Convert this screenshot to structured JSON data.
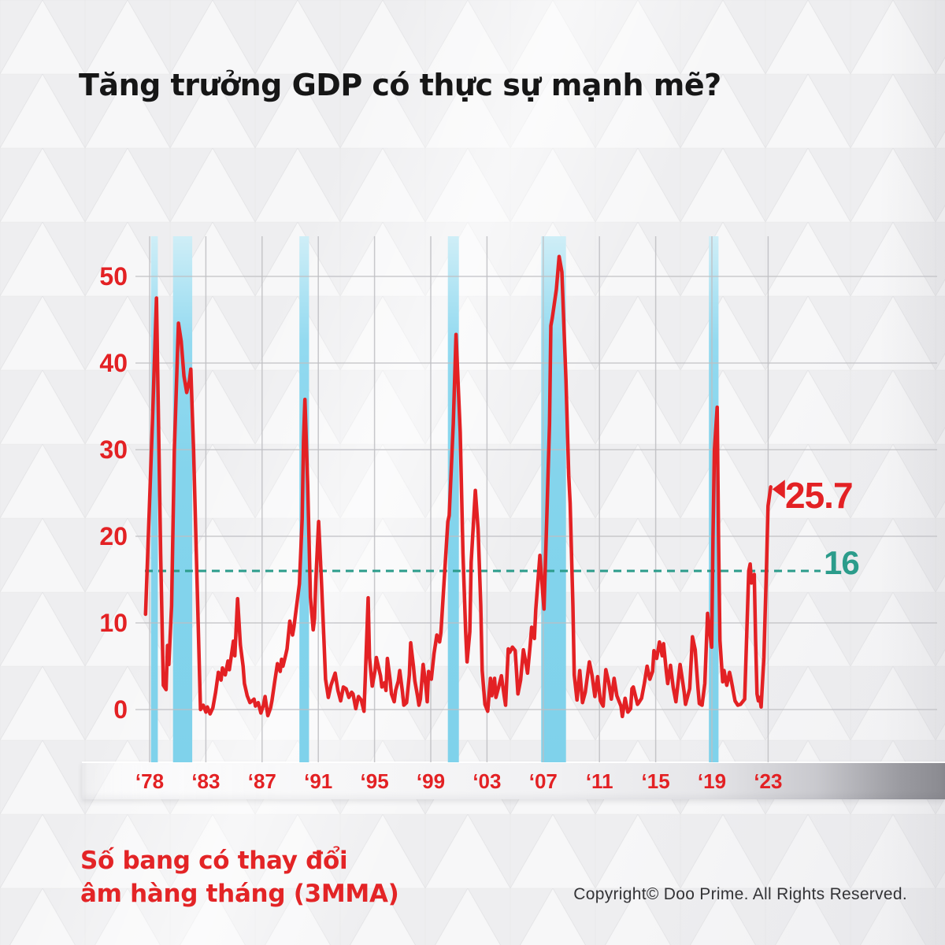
{
  "page": {
    "title": "Tăng trưởng GDP có thực sự mạnh mẽ?",
    "footnote_line1": "Số bang có thay đổi",
    "footnote_line2": "âm hàng tháng (3MMA)",
    "copyright": "Copyright© Doo Prime. All Rights Reserved."
  },
  "colors": {
    "line_red": "#e32124",
    "label_red": "#e32124",
    "teal": "#2b9c8b",
    "band_blue": "#84d4ec",
    "band_blue_light": "#cfeef7",
    "grid": "#bfbfc3",
    "title_text": "#161616",
    "copyright_text": "#333336",
    "background": "#f1f1f2",
    "ribbon_dark": "#8a8a90"
  },
  "chart_data": {
    "type": "line",
    "title": "Tăng trưởng GDP có thực sự mạnh mẽ?",
    "series_note": "Số bang có thay đổi âm hàng tháng (3MMA)",
    "x_tick_labels": [
      "‘78",
      "‘83",
      "‘87",
      "‘91",
      "‘95",
      "‘99",
      "‘03",
      "‘07",
      "‘11",
      "‘15",
      "‘19",
      "‘23"
    ],
    "y_ticks": [
      0,
      10,
      20,
      30,
      40,
      50
    ],
    "ylim": [
      -6,
      54.5
    ],
    "x_range_years": [
      1977.7,
      2023.2
    ],
    "grid": true,
    "reference_line": {
      "value": 16,
      "label": "16"
    },
    "end_annotation": {
      "value": 25.7,
      "label": "25.7"
    },
    "recession_bands": [
      [
        1978.1,
        1978.6
      ],
      [
        1979.7,
        1981.1
      ],
      [
        1988.9,
        1989.6
      ],
      [
        1999.7,
        2000.5
      ],
      [
        2006.5,
        2008.3
      ],
      [
        2018.7,
        2019.4
      ]
    ],
    "series": [
      {
        "name": "Số bang có thay đổi âm hàng tháng (3MMA)",
        "points": [
          [
            1977.7,
            11
          ],
          [
            1978.2,
            33
          ],
          [
            1978.5,
            47.5
          ],
          [
            1978.8,
            18
          ],
          [
            1979.0,
            2.8
          ],
          [
            1979.2,
            2.3
          ],
          [
            1979.3,
            7.4
          ],
          [
            1979.4,
            5.2
          ],
          [
            1979.6,
            12
          ],
          [
            1979.8,
            30
          ],
          [
            1980.1,
            44.6
          ],
          [
            1980.3,
            42.5
          ],
          [
            1980.5,
            38.5
          ],
          [
            1980.7,
            36.6
          ],
          [
            1980.9,
            38.0
          ],
          [
            1981.0,
            39.3
          ],
          [
            1981.2,
            30
          ],
          [
            1981.4,
            18
          ],
          [
            1981.6,
            6
          ],
          [
            1981.7,
            0
          ],
          [
            1981.9,
            0.5
          ],
          [
            1982.1,
            -0.3
          ],
          [
            1982.2,
            0.3
          ],
          [
            1982.4,
            -0.5
          ],
          [
            1982.6,
            0.2
          ],
          [
            1982.8,
            2.0
          ],
          [
            1983.0,
            4.3
          ],
          [
            1983.2,
            3.4
          ],
          [
            1983.3,
            4.8
          ],
          [
            1983.5,
            4.0
          ],
          [
            1983.7,
            5.6
          ],
          [
            1983.8,
            4.6
          ],
          [
            1984.1,
            7.9
          ],
          [
            1984.2,
            6.2
          ],
          [
            1984.4,
            12.8
          ],
          [
            1984.6,
            7.5
          ],
          [
            1984.8,
            5.0
          ],
          [
            1984.9,
            3.0
          ],
          [
            1985.1,
            1.6
          ],
          [
            1985.3,
            0.8
          ],
          [
            1985.6,
            1.2
          ],
          [
            1985.7,
            0.4
          ],
          [
            1985.9,
            0.8
          ],
          [
            1986.1,
            -0.4
          ],
          [
            1986.3,
            0.6
          ],
          [
            1986.4,
            1.5
          ],
          [
            1986.6,
            -0.7
          ],
          [
            1986.8,
            0.2
          ],
          [
            1986.9,
            1.0
          ],
          [
            1987.1,
            3.2
          ],
          [
            1987.3,
            5.3
          ],
          [
            1987.5,
            4.4
          ],
          [
            1987.6,
            5.8
          ],
          [
            1987.7,
            5.0
          ],
          [
            1987.9,
            6.3
          ],
          [
            1988.0,
            7.0
          ],
          [
            1988.2,
            10.2
          ],
          [
            1988.4,
            8.6
          ],
          [
            1988.5,
            9.5
          ],
          [
            1988.7,
            12.0
          ],
          [
            1988.9,
            14.5
          ],
          [
            1989.1,
            22
          ],
          [
            1989.2,
            31
          ],
          [
            1989.3,
            35.8
          ],
          [
            1989.5,
            26
          ],
          [
            1989.7,
            13
          ],
          [
            1989.9,
            9.2
          ],
          [
            1990.0,
            10.5
          ],
          [
            1990.1,
            15
          ],
          [
            1990.3,
            21.7
          ],
          [
            1990.5,
            15
          ],
          [
            1990.7,
            7.5
          ],
          [
            1990.8,
            3.5
          ],
          [
            1991.0,
            1.4
          ],
          [
            1991.2,
            2.8
          ],
          [
            1991.5,
            4.2
          ],
          [
            1991.7,
            2.2
          ],
          [
            1991.9,
            1.0
          ],
          [
            1992.1,
            2.6
          ],
          [
            1992.3,
            2.4
          ],
          [
            1992.5,
            1.4
          ],
          [
            1992.7,
            2.0
          ],
          [
            1992.8,
            1.8
          ],
          [
            1993.0,
            0.1
          ],
          [
            1993.2,
            1.5
          ],
          [
            1993.4,
            1.1
          ],
          [
            1993.6,
            -0.2
          ],
          [
            1993.7,
            4
          ],
          [
            1993.9,
            12.9
          ],
          [
            1994.0,
            6
          ],
          [
            1994.2,
            2.7
          ],
          [
            1994.4,
            4.5
          ],
          [
            1994.5,
            6.0
          ],
          [
            1994.7,
            4.6
          ],
          [
            1994.8,
            3.9
          ],
          [
            1994.9,
            2.6
          ],
          [
            1995.1,
            3.1
          ],
          [
            1995.2,
            2.2
          ],
          [
            1995.3,
            5.9
          ],
          [
            1995.5,
            3.4
          ],
          [
            1995.6,
            1.8
          ],
          [
            1995.8,
            0.9
          ],
          [
            1995.9,
            2.2
          ],
          [
            1996.1,
            3.3
          ],
          [
            1996.2,
            4.5
          ],
          [
            1996.4,
            2.0
          ],
          [
            1996.5,
            0.5
          ],
          [
            1996.7,
            0.8
          ],
          [
            1996.9,
            4.0
          ],
          [
            1997.0,
            7.7
          ],
          [
            1997.2,
            5.0
          ],
          [
            1997.3,
            3.3
          ],
          [
            1997.5,
            1.5
          ],
          [
            1997.6,
            0.5
          ],
          [
            1997.7,
            1.2
          ],
          [
            1997.9,
            5.2
          ],
          [
            1998.1,
            2.8
          ],
          [
            1998.2,
            0.9
          ],
          [
            1998.3,
            4.4
          ],
          [
            1998.5,
            3.5
          ],
          [
            1998.7,
            6.5
          ],
          [
            1998.9,
            8.6
          ],
          [
            1999.1,
            7.8
          ],
          [
            1999.2,
            8.9
          ],
          [
            1999.4,
            14
          ],
          [
            1999.7,
            21.7
          ],
          [
            1999.8,
            22.4
          ],
          [
            2000.1,
            33
          ],
          [
            2000.3,
            43.3
          ],
          [
            2000.6,
            32
          ],
          [
            2000.8,
            18
          ],
          [
            2001.0,
            9
          ],
          [
            2001.1,
            5.5
          ],
          [
            2001.3,
            9
          ],
          [
            2001.4,
            17
          ],
          [
            2001.7,
            25.3
          ],
          [
            2001.9,
            20.8
          ],
          [
            2002.1,
            12
          ],
          [
            2002.2,
            4.5
          ],
          [
            2002.4,
            0.6
          ],
          [
            2002.6,
            -0.2
          ],
          [
            2002.8,
            3.6
          ],
          [
            2002.9,
            1.6
          ],
          [
            2003.1,
            3.6
          ],
          [
            2003.2,
            1.4
          ],
          [
            2003.4,
            2.6
          ],
          [
            2003.6,
            3.9
          ],
          [
            2003.8,
            1.6
          ],
          [
            2003.9,
            0.5
          ],
          [
            2004.1,
            7.0
          ],
          [
            2004.2,
            6.6
          ],
          [
            2004.4,
            7.2
          ],
          [
            2004.6,
            6.8
          ],
          [
            2004.8,
            1.8
          ],
          [
            2005.0,
            3.4
          ],
          [
            2005.2,
            6.9
          ],
          [
            2005.4,
            5.2
          ],
          [
            2005.5,
            4.2
          ],
          [
            2005.7,
            7.6
          ],
          [
            2005.8,
            9.5
          ],
          [
            2006.0,
            8.2
          ],
          [
            2006.1,
            11.5
          ],
          [
            2006.4,
            17.8
          ],
          [
            2006.6,
            13.5
          ],
          [
            2006.7,
            11.6
          ],
          [
            2006.9,
            22
          ],
          [
            2007.1,
            33
          ],
          [
            2007.2,
            44.3
          ],
          [
            2007.3,
            45.2
          ],
          [
            2007.6,
            48.5
          ],
          [
            2007.8,
            52.3
          ],
          [
            2008.0,
            50.5
          ],
          [
            2008.3,
            38
          ],
          [
            2008.5,
            27
          ],
          [
            2008.6,
            23.8
          ],
          [
            2008.8,
            12
          ],
          [
            2008.9,
            4
          ],
          [
            2009.1,
            1.1
          ],
          [
            2009.3,
            4.5
          ],
          [
            2009.5,
            0.8
          ],
          [
            2009.7,
            2.0
          ],
          [
            2010.0,
            5.5
          ],
          [
            2010.2,
            3.9
          ],
          [
            2010.4,
            1.5
          ],
          [
            2010.6,
            3.8
          ],
          [
            2010.8,
            1.0
          ],
          [
            2011.0,
            0.4
          ],
          [
            2011.2,
            4.6
          ],
          [
            2011.4,
            3.2
          ],
          [
            2011.6,
            1.2
          ],
          [
            2011.8,
            3.6
          ],
          [
            2012.0,
            1.6
          ],
          [
            2012.3,
            0.4
          ],
          [
            2012.4,
            -0.8
          ],
          [
            2012.6,
            1.3
          ],
          [
            2012.8,
            -0.3
          ],
          [
            2013.0,
            0.1
          ],
          [
            2013.1,
            2.4
          ],
          [
            2013.2,
            2.6
          ],
          [
            2013.5,
            0.6
          ],
          [
            2013.6,
            0.8
          ],
          [
            2013.8,
            1.3
          ],
          [
            2014.0,
            3.0
          ],
          [
            2014.2,
            5.0
          ],
          [
            2014.4,
            3.5
          ],
          [
            2014.6,
            4.4
          ],
          [
            2014.7,
            6.8
          ],
          [
            2014.9,
            5.9
          ],
          [
            2015.1,
            7.8
          ],
          [
            2015.3,
            6.2
          ],
          [
            2015.4,
            7.6
          ],
          [
            2015.6,
            4.4
          ],
          [
            2015.7,
            3.0
          ],
          [
            2015.9,
            5.1
          ],
          [
            2016.1,
            2.6
          ],
          [
            2016.3,
            0.9
          ],
          [
            2016.6,
            5.2
          ],
          [
            2016.7,
            4.2
          ],
          [
            2016.9,
            2.0
          ],
          [
            2017.0,
            0.6
          ],
          [
            2017.3,
            2.4
          ],
          [
            2017.5,
            8.4
          ],
          [
            2017.7,
            6.9
          ],
          [
            2017.9,
            2.5
          ],
          [
            2018.0,
            0.7
          ],
          [
            2018.2,
            0.5
          ],
          [
            2018.4,
            3.0
          ],
          [
            2018.6,
            11.1
          ],
          [
            2018.9,
            7.2
          ],
          [
            2019.0,
            20
          ],
          [
            2019.1,
            30
          ],
          [
            2019.3,
            34.9
          ],
          [
            2019.4,
            20
          ],
          [
            2019.5,
            8
          ],
          [
            2019.7,
            3.2
          ],
          [
            2019.8,
            4.5
          ],
          [
            2020.0,
            2.8
          ],
          [
            2020.2,
            4.3
          ],
          [
            2020.3,
            3.6
          ],
          [
            2020.6,
            1.0
          ],
          [
            2020.8,
            0.5
          ],
          [
            2021.0,
            0.6
          ],
          [
            2021.3,
            1.2
          ],
          [
            2021.4,
            6
          ],
          [
            2021.6,
            16.0
          ],
          [
            2021.7,
            16.8
          ],
          [
            2021.8,
            14.6
          ],
          [
            2022.0,
            15.6
          ],
          [
            2022.1,
            8
          ],
          [
            2022.2,
            1.8
          ],
          [
            2022.3,
            1.0
          ],
          [
            2022.4,
            1.4
          ],
          [
            2022.5,
            0.3
          ],
          [
            2022.7,
            6
          ],
          [
            2022.9,
            17
          ],
          [
            2023.0,
            23.5
          ],
          [
            2023.2,
            25.7
          ]
        ]
      }
    ]
  }
}
